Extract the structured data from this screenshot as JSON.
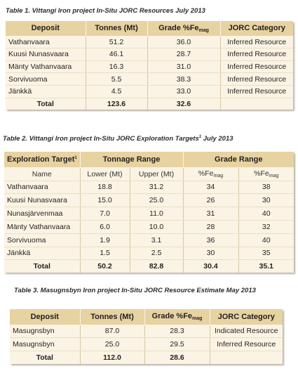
{
  "table1": {
    "caption": "Table 1. Vittangi Iron project In-Situ JORC Resources July 2013",
    "headers": {
      "deposit": "Deposit",
      "tonnes": "Tonnes (Mt)",
      "grade": "Grade %Fe",
      "grade_sub": "mag",
      "jorc": "JORC Category"
    },
    "rows": [
      {
        "deposit": "Vathanvaara",
        "tonnes": "51.2",
        "grade": "36.0",
        "category": "Inferred Resource"
      },
      {
        "deposit": "Kuusi Nunasvaara",
        "tonnes": "46.1",
        "grade": "28.7",
        "category": "Inferred Resource"
      },
      {
        "deposit": "Mänty Vathanvaara",
        "tonnes": "16.3",
        "grade": "31.0",
        "category": "Inferred Resource"
      },
      {
        "deposit": "Sorvivuoma",
        "tonnes": "5.5",
        "grade": "38.3",
        "category": "Inferred Resource"
      },
      {
        "deposit": "Jänkkä",
        "tonnes": "4.5",
        "grade": "33.0",
        "category": "Inferred Resource"
      }
    ],
    "total": {
      "label": "Total",
      "tonnes": "123.6",
      "grade": "32.6"
    }
  },
  "table2": {
    "caption": "Table 2. Vittangi Iron project In-Situ JORC Exploration Targets",
    "caption_sup": "1",
    "caption_tail": " July 2013",
    "headers": {
      "target": "Exploration Target",
      "target_sup": "1",
      "tonnage": "Tonnage Range",
      "grade": "Grade Range"
    },
    "subheaders": {
      "name": "Name",
      "lower": "Lower (Mt)",
      "upper": "Upper (Mt)",
      "fe1": "%Fe",
      "fe1_sub": "mag",
      "fe2": "%Fe",
      "fe2_sub": "mag"
    },
    "rows": [
      {
        "name": "Vathanvaara",
        "lower": "18.8",
        "upper": "31.2",
        "g1": "34",
        "g2": "38"
      },
      {
        "name": "Kuusi Nunasvaara",
        "lower": "15.0",
        "upper": "25.0",
        "g1": "26",
        "g2": "30"
      },
      {
        "name": "Nunasjärvenmaa",
        "lower": "7.0",
        "upper": "11.0",
        "g1": "31",
        "g2": "40"
      },
      {
        "name": "Mänty Vathanvaara",
        "lower": "6.0",
        "upper": "10.0",
        "g1": "28",
        "g2": "32"
      },
      {
        "name": "Sorvivuoma",
        "lower": "1.9",
        "upper": "3.1",
        "g1": "36",
        "g2": "40"
      },
      {
        "name": "Jänkkä",
        "lower": "1.5",
        "upper": "2.5",
        "g1": "30",
        "g2": "35"
      }
    ],
    "total": {
      "label": "Total",
      "lower": "50.2",
      "upper": "82.8",
      "g1": "30.4",
      "g2": "35.1"
    }
  },
  "table3": {
    "caption": "Table 3. Masugnsbyn Iron project In-Situ JORC Resource Estimate May 2013",
    "headers": {
      "deposit": "Deposit",
      "tonnes": "Tonnes (Mt)",
      "grade": "Grade %Fe",
      "grade_sub": "mag",
      "jorc": "JORC Category"
    },
    "rows": [
      {
        "deposit": "Masugnsbyn",
        "tonnes": "87.0",
        "grade": "28.3",
        "category": "Indicated Resource"
      },
      {
        "deposit": "Masugnsbyn",
        "tonnes": "25.0",
        "grade": "29.5",
        "category": "Inferred Resource"
      }
    ],
    "total": {
      "label": "Total",
      "tonnes": "112.0",
      "grade": "28.6"
    }
  }
}
